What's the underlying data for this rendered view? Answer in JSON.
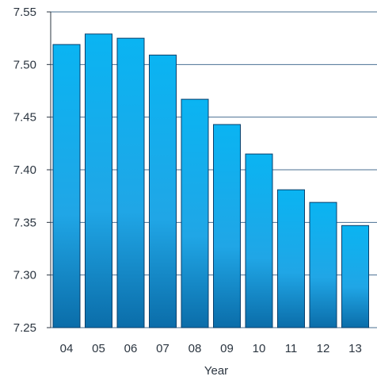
{
  "chart_data": {
    "type": "bar",
    "title": "",
    "xlabel": "Year",
    "ylabel": "",
    "categories": [
      "04",
      "05",
      "06",
      "07",
      "08",
      "09",
      "10",
      "11",
      "12",
      "13"
    ],
    "values": [
      7.519,
      7.529,
      7.525,
      7.509,
      7.467,
      7.443,
      7.415,
      7.381,
      7.369,
      7.347
    ],
    "ylim": [
      7.25,
      7.55
    ],
    "yticks": [
      "7.25",
      "7.30",
      "7.35",
      "7.40",
      "7.45",
      "7.50",
      "7.55"
    ],
    "grid": true,
    "legend": "none",
    "colors": {
      "bar_top": "#0ab4f2",
      "bar_mid": "#20a6e6",
      "bar_bottom": "#0b6da9",
      "bar_border": "#0a3f6b",
      "gridline": "#4a6f92",
      "axis": "#2b3540"
    }
  }
}
